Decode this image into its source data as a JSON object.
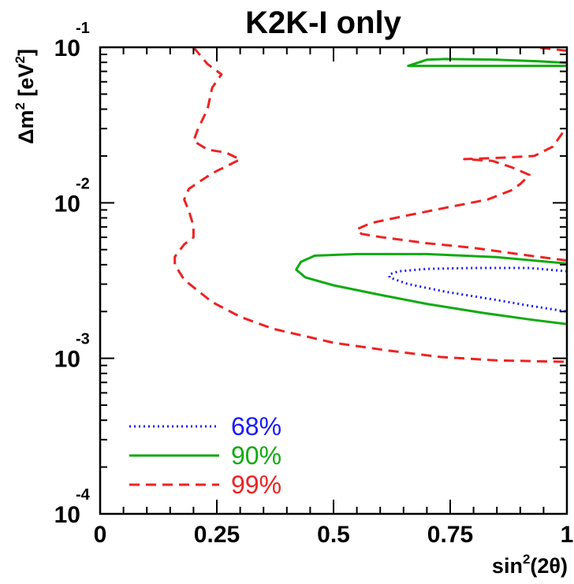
{
  "chart_data": {
    "type": "line",
    "title": "K2K-I only",
    "xlabel": "sin²(2θ)",
    "xlabel_base": "sin",
    "xlabel_sup": "2",
    "xlabel_rest": "(2θ)",
    "ylabel": "Δm² [eV²]",
    "ylabel_parts": {
      "a": "Δm",
      "a_sup": "2",
      "b": " [eV",
      "b_sup": "2",
      "c": "]"
    },
    "xlim": [
      0,
      1
    ],
    "ylim": [
      0.0001,
      0.1
    ],
    "yscale": "log",
    "x_ticks": [
      {
        "value": 0,
        "label": "0"
      },
      {
        "value": 0.25,
        "label": "0.25"
      },
      {
        "value": 0.5,
        "label": "0.5"
      },
      {
        "value": 0.75,
        "label": "0.75"
      },
      {
        "value": 1,
        "label": "1"
      }
    ],
    "y_ticks": [
      {
        "value": 0.1,
        "base": "10",
        "exp": "-1"
      },
      {
        "value": 0.01,
        "base": "10",
        "exp": "-2"
      },
      {
        "value": 0.001,
        "base": "10",
        "exp": "-3"
      },
      {
        "value": 0.0001,
        "base": "10",
        "exp": "-4"
      }
    ],
    "legend_position": "bottom-left",
    "series": [
      {
        "name": "68%",
        "color": "#1a1aff",
        "style": "dotted",
        "segments": [
          [
            [
              1.0,
              0.00363
            ],
            [
              0.92,
              0.00381
            ],
            [
              0.8,
              0.00381
            ],
            [
              0.7,
              0.00376
            ],
            [
              0.64,
              0.00363
            ],
            [
              0.62,
              0.00347
            ],
            [
              0.62,
              0.00331
            ],
            [
              0.66,
              0.003
            ],
            [
              0.74,
              0.00268
            ],
            [
              0.85,
              0.00237
            ],
            [
              0.92,
              0.00218
            ],
            [
              1.0,
              0.002
            ]
          ]
        ]
      },
      {
        "name": "90%",
        "color": "#11aa11",
        "style": "solid",
        "segments": [
          [
            [
              1.0,
              0.00407
            ],
            [
              0.85,
              0.00447
            ],
            [
              0.7,
              0.00468
            ],
            [
              0.55,
              0.00468
            ],
            [
              0.46,
              0.00457
            ],
            [
              0.43,
              0.00417
            ],
            [
              0.42,
              0.00372
            ],
            [
              0.44,
              0.00331
            ],
            [
              0.5,
              0.00295
            ],
            [
              0.6,
              0.00256
            ],
            [
              0.7,
              0.00224
            ],
            [
              0.82,
              0.00196
            ],
            [
              0.92,
              0.00178
            ],
            [
              1.0,
              0.00166
            ]
          ],
          [
            [
              1.0,
              0.0794
            ],
            [
              0.94,
              0.0813
            ],
            [
              0.85,
              0.0832
            ],
            [
              0.74,
              0.084
            ],
            [
              0.7,
              0.0832
            ],
            [
              0.66,
              0.0759
            ],
            [
              0.72,
              0.0759
            ],
            [
              0.85,
              0.0759
            ],
            [
              1.0,
              0.0759
            ]
          ]
        ]
      },
      {
        "name": "99%",
        "color": "#ee2222",
        "style": "dashed",
        "segments": [
          [
            [
              0.2,
              0.1
            ],
            [
              0.23,
              0.078
            ],
            [
              0.26,
              0.067
            ],
            [
              0.24,
              0.055
            ],
            [
              0.23,
              0.04
            ],
            [
              0.21,
              0.03
            ],
            [
              0.2,
              0.025
            ],
            [
              0.23,
              0.022
            ],
            [
              0.27,
              0.021
            ],
            [
              0.3,
              0.019
            ],
            [
              0.24,
              0.0155
            ],
            [
              0.19,
              0.0123
            ],
            [
              0.18,
              0.0105
            ],
            [
              0.19,
              0.0089
            ],
            [
              0.2,
              0.0071
            ],
            [
              0.2,
              0.006
            ],
            [
              0.18,
              0.0054
            ],
            [
              0.16,
              0.0045
            ],
            [
              0.16,
              0.004
            ],
            [
              0.18,
              0.0032
            ],
            [
              0.24,
              0.0023
            ],
            [
              0.3,
              0.00185
            ],
            [
              0.37,
              0.00155
            ],
            [
              0.5,
              0.00126
            ],
            [
              0.62,
              0.00112
            ],
            [
              0.73,
              0.00102
            ],
            [
              0.85,
              0.00097
            ],
            [
              1.0,
              0.00095
            ]
          ],
          [
            [
              1.0,
              0.00426
            ],
            [
              0.92,
              0.00457
            ],
            [
              0.8,
              0.00513
            ],
            [
              0.7,
              0.0055
            ],
            [
              0.6,
              0.00603
            ],
            [
              0.56,
              0.00631
            ],
            [
              0.55,
              0.00676
            ],
            [
              0.58,
              0.00741
            ],
            [
              0.66,
              0.00832
            ],
            [
              0.76,
              0.00955
            ],
            [
              0.83,
              0.0105
            ],
            [
              0.88,
              0.012
            ],
            [
              0.9,
              0.0132
            ],
            [
              0.92,
              0.0151
            ],
            [
              0.88,
              0.017
            ],
            [
              0.84,
              0.0186
            ],
            [
              0.78,
              0.0191
            ],
            [
              0.86,
              0.0195
            ],
            [
              0.93,
              0.02
            ],
            [
              0.97,
              0.023
            ],
            [
              0.99,
              0.028
            ],
            [
              1.0,
              0.03
            ]
          ],
          [
            [
              1.0,
              0.095
            ],
            [
              0.96,
              0.098
            ],
            [
              0.93,
              0.1
            ]
          ]
        ]
      }
    ]
  }
}
